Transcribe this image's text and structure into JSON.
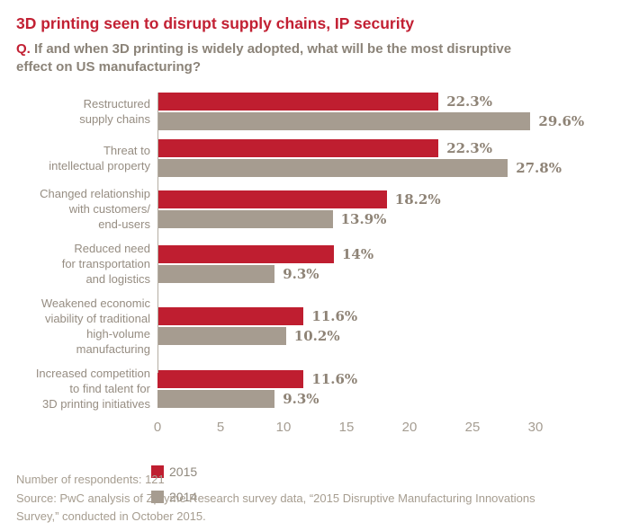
{
  "header": {
    "title": "3D printing seen to disrupt supply chains, IP security",
    "question_prefix": "Q.",
    "question_text": " If and when 3D printing is widely adopted, what will be the most disruptive\neffect on US manufacturing?"
  },
  "chart_data": {
    "type": "bar",
    "orientation": "horizontal",
    "categories": [
      "Restructured\nsupply chains",
      "Threat to\nintellectual property",
      "Changed relationship\nwith customers/\nend-users",
      "Reduced need\nfor transportation\nand logistics",
      "Weakened economic\nviability of traditional\nhigh-volume manufacturing",
      "Increased competition\nto find talent for\n3D printing initiatives"
    ],
    "series": [
      {
        "name": "2015",
        "color": "#bf1e30",
        "values": [
          22.3,
          22.3,
          18.2,
          14,
          11.6,
          11.6
        ],
        "labels": [
          "22.3%",
          "22.3%",
          "18.2%",
          "14%",
          "11.6%",
          "11.6%"
        ]
      },
      {
        "name": "2014",
        "color": "#a69c90",
        "values": [
          29.6,
          27.8,
          13.9,
          9.3,
          10.2,
          9.3
        ],
        "labels": [
          "29.6%",
          "27.8%",
          "13.9%",
          "9.3%",
          "10.2%",
          "9.3%"
        ]
      }
    ],
    "x_ticks": [
      0,
      5,
      10,
      15,
      20,
      25,
      30
    ],
    "xlim": [
      0,
      33
    ],
    "xlabel": "",
    "ylabel": "",
    "grid": false,
    "legend_position": "bottom-left",
    "value_suffix": "%"
  },
  "footer": {
    "respondents": "Number of respondents: 121",
    "source": "Source: PwC analysis of Zpryme Research survey data, “2015 Disruptive Manufacturing Innovations\nSurvey,” conducted in October 2015."
  },
  "colors": {
    "accent_red": "#bf1e30",
    "bar_gray": "#a69c90",
    "axis_line": "#b5aea3"
  }
}
